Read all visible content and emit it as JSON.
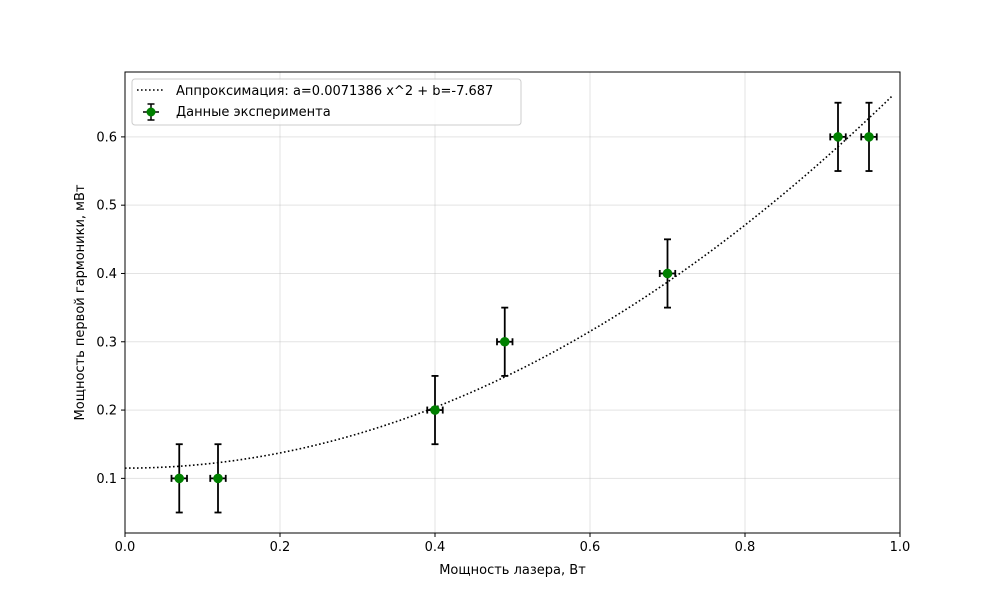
{
  "chart_data": {
    "type": "scatter",
    "title": "",
    "xlabel": "Мощность лазера, Вт",
    "ylabel": "Мощность первой гармоники, мВт",
    "xlim": [
      0.0,
      1.0
    ],
    "ylim": [
      0.02,
      0.695
    ],
    "x_ticks": [
      "0.0",
      "0.2",
      "0.4",
      "0.6",
      "0.8",
      "1.0"
    ],
    "y_ticks": [
      "0.1",
      "0.2",
      "0.3",
      "0.4",
      "0.5",
      "0.6"
    ],
    "grid": true,
    "legend_position": "top-left",
    "series": [
      {
        "name": "Данные эксперимента",
        "kind": "errorbar",
        "color": "#008000",
        "x": [
          0.07,
          0.12,
          0.4,
          0.49,
          0.7,
          0.92,
          0.96
        ],
        "y": [
          0.1,
          0.1,
          0.2,
          0.3,
          0.4,
          0.6,
          0.6
        ],
        "x_err": [
          0.01,
          0.01,
          0.01,
          0.01,
          0.01,
          0.01,
          0.01
        ],
        "y_err": [
          0.05,
          0.05,
          0.05,
          0.05,
          0.05,
          0.05,
          0.05
        ]
      },
      {
        "name": "Аппроксимация: a=0.0071386 x^2 + b=-7.687",
        "kind": "fit-line",
        "style": "dotted",
        "color": "#000000",
        "x_range": [
          0.0,
          0.99
        ],
        "y_at_x0": 0.115,
        "y_at_x_end": 0.66
      }
    ]
  }
}
